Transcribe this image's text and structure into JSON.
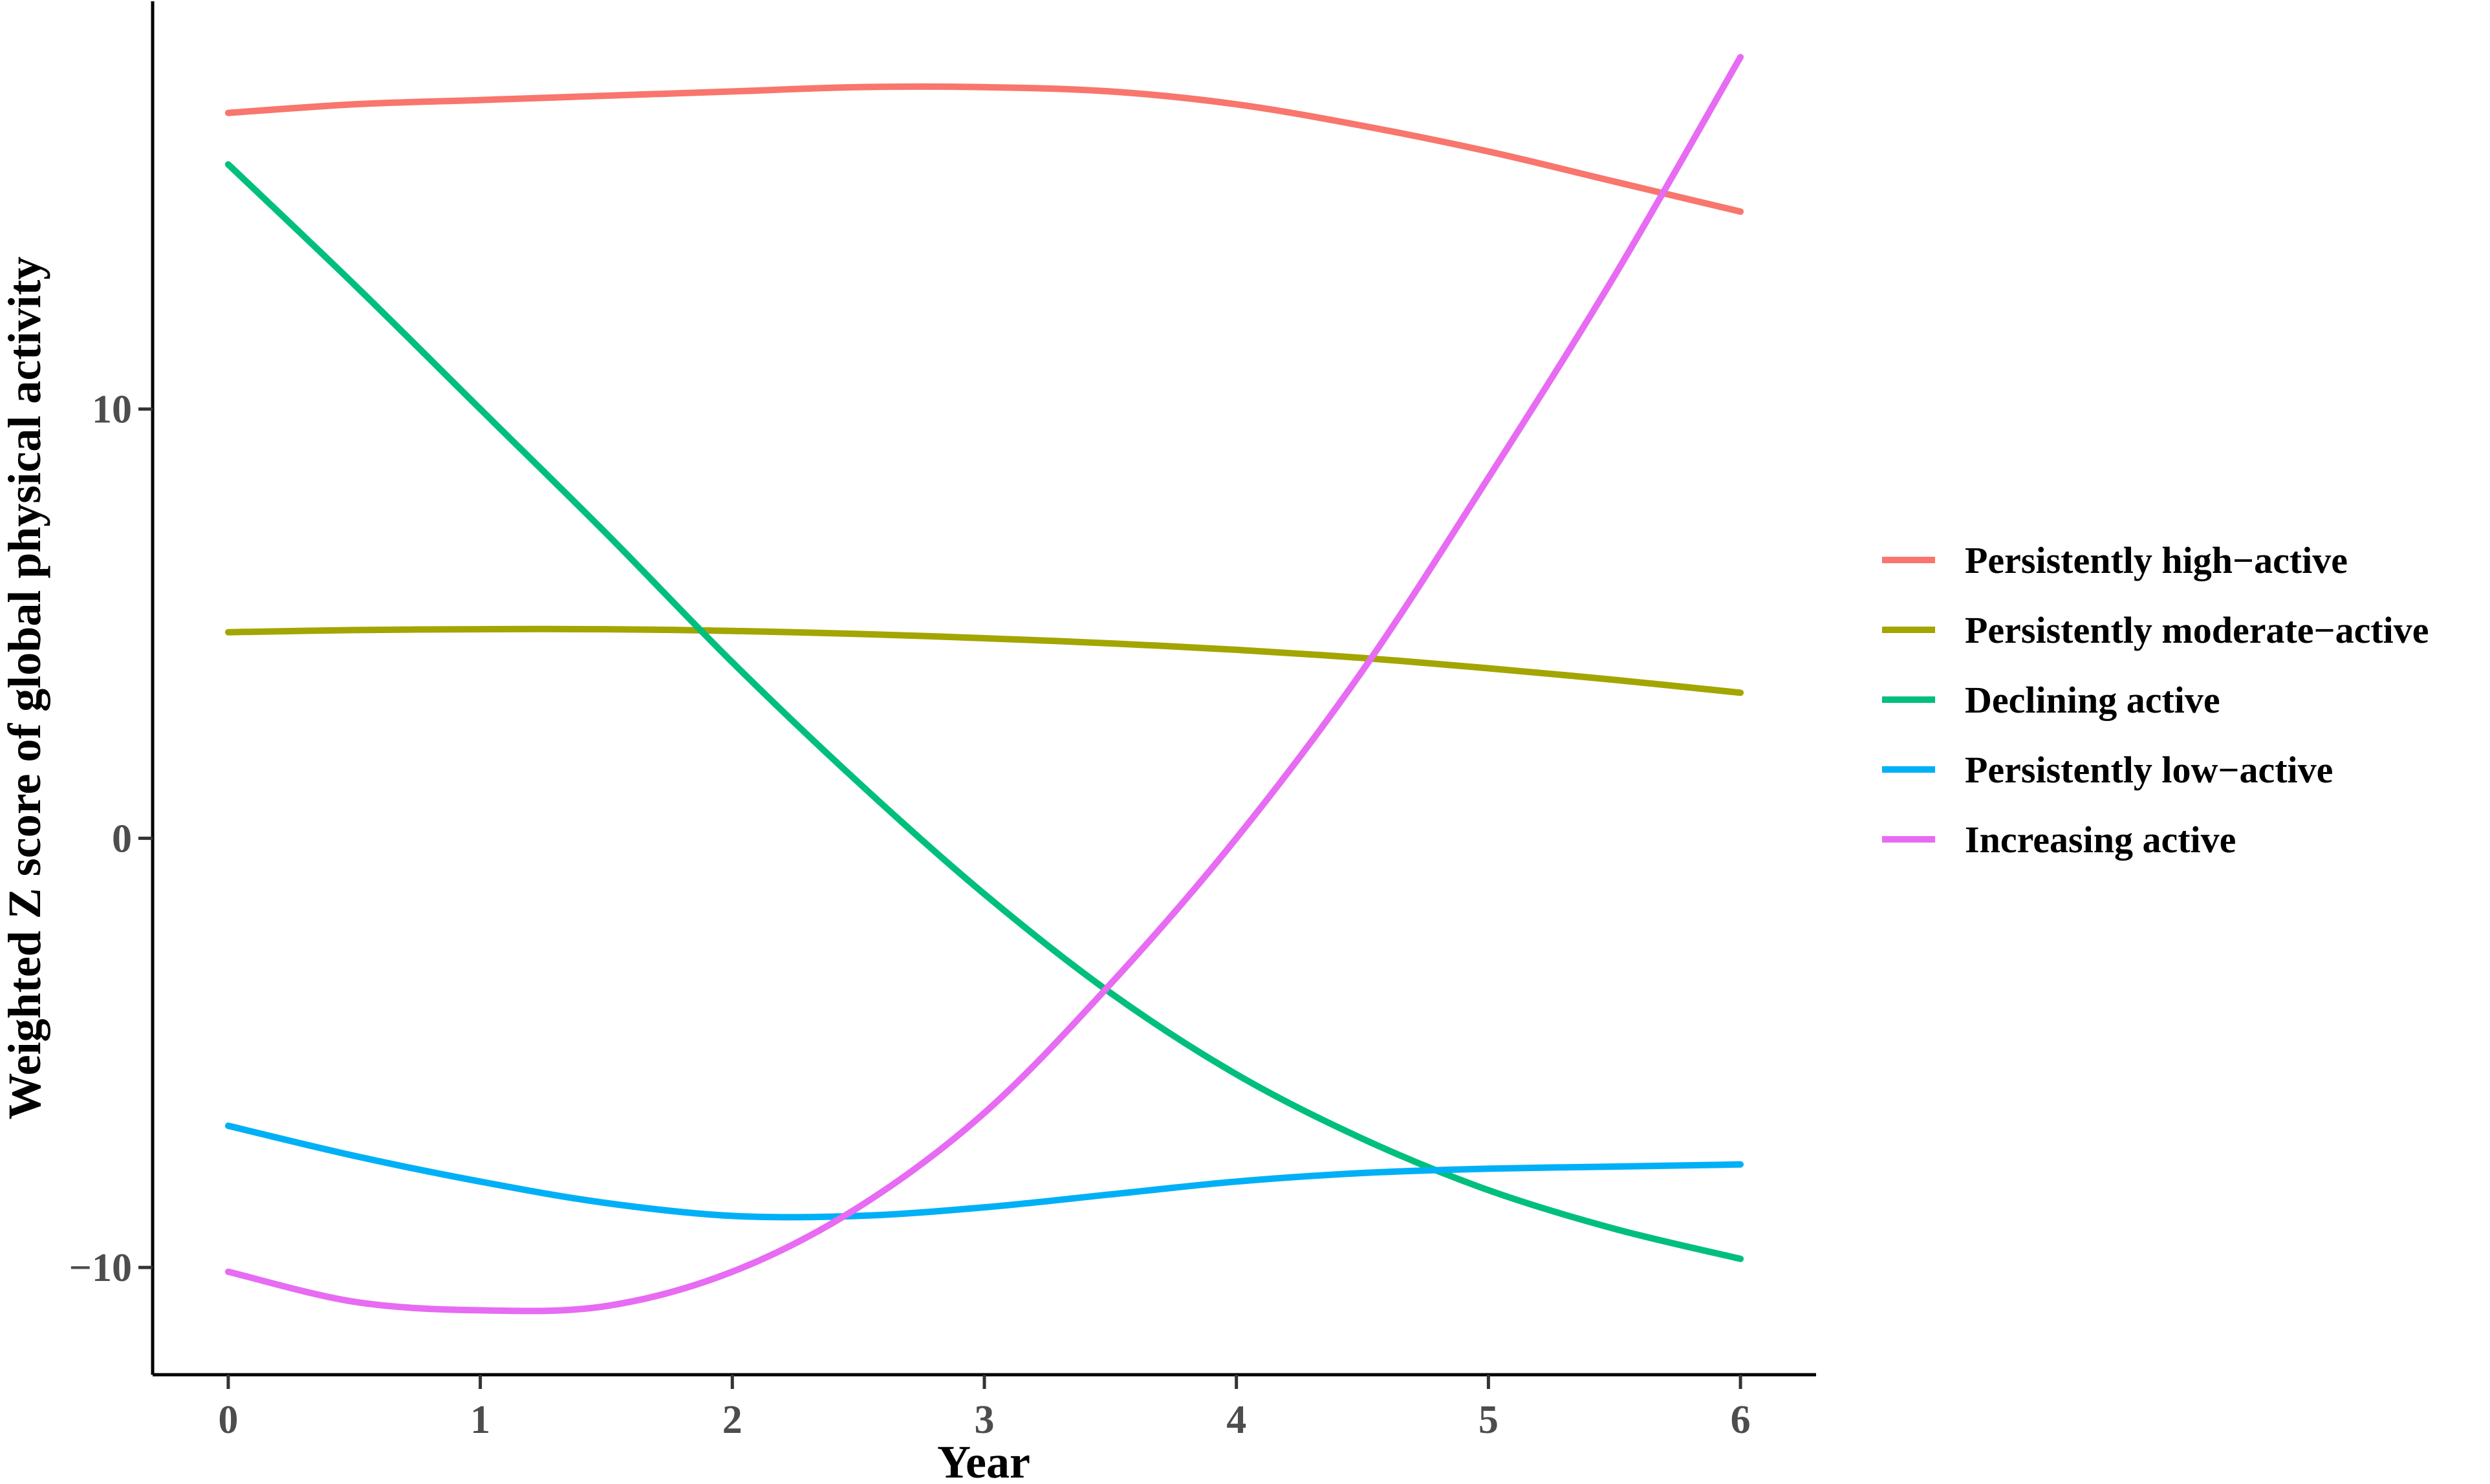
{
  "chart_data": {
    "type": "line",
    "title": "",
    "xlabel": "Year",
    "ylabel": "Weighted Z score of global physical activity",
    "xlim": [
      -0.3,
      6.3
    ],
    "ylim": [
      -12.5,
      19.5
    ],
    "x_ticks": [
      "0",
      "1",
      "2",
      "3",
      "4",
      "5",
      "6"
    ],
    "y_ticks": [
      "10",
      "0",
      "−10"
    ],
    "y_tick_values": [
      10,
      0,
      -10
    ],
    "grid": false,
    "legend_position": "right",
    "x": [
      0,
      0.5,
      1,
      1.5,
      2,
      2.5,
      3,
      3.5,
      4,
      4.5,
      5,
      5.5,
      6
    ],
    "series": [
      {
        "name": "Persistently high−active",
        "color": "#F8766D",
        "values": [
          16.9,
          17.1,
          17.2,
          17.3,
          17.4,
          17.5,
          17.5,
          17.4,
          17.1,
          16.6,
          16.0,
          15.3,
          14.6
        ]
      },
      {
        "name": "Persistently moderate−active",
        "color": "#A3A500",
        "values": [
          4.8,
          4.85,
          4.87,
          4.87,
          4.83,
          4.76,
          4.66,
          4.54,
          4.39,
          4.2,
          3.96,
          3.69,
          3.39
        ]
      },
      {
        "name": "Declining active",
        "color": "#00BF7D",
        "values": [
          15.7,
          12.9,
          10.0,
          7.1,
          4.1,
          1.3,
          -1.3,
          -3.6,
          -5.5,
          -7.0,
          -8.2,
          -9.1,
          -9.8
        ]
      },
      {
        "name": "Persistently low−active",
        "color": "#00B0F6",
        "values": [
          -6.7,
          -7.4,
          -8.0,
          -8.5,
          -8.8,
          -8.8,
          -8.6,
          -8.3,
          -8.0,
          -7.8,
          -7.7,
          -7.65,
          -7.6
        ]
      },
      {
        "name": "Increasing active",
        "color": "#E76BF3",
        "values": [
          -10.1,
          -10.8,
          -11.0,
          -10.9,
          -10.1,
          -8.6,
          -6.4,
          -3.4,
          0.0,
          3.9,
          8.4,
          13.1,
          18.2
        ]
      }
    ]
  }
}
